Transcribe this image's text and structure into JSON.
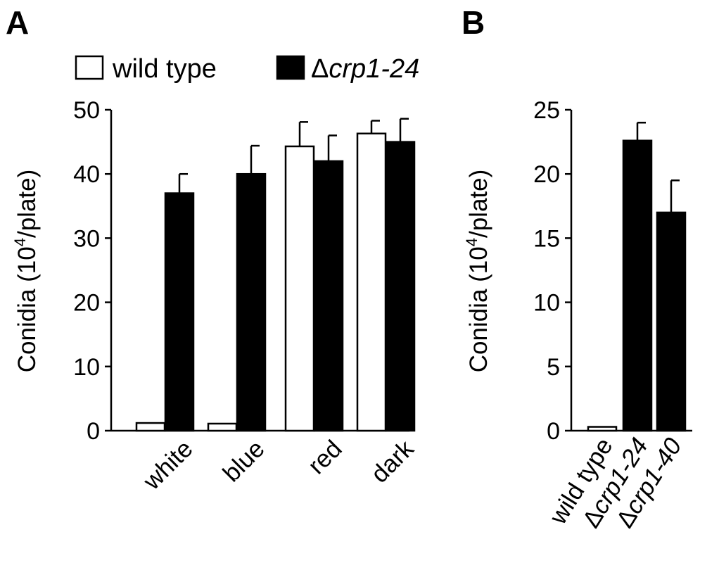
{
  "chart_data": [
    {
      "panel": "A",
      "type": "bar",
      "ylabel": "Conidia (10",
      "ylabel_sup": "4",
      "ylabel_tail": "/plate)",
      "ylim": [
        0,
        50
      ],
      "yticks": [
        "0",
        "10",
        "20",
        "30",
        "40",
        "50"
      ],
      "categories": [
        "white",
        "blue",
        "red",
        "dark"
      ],
      "series": [
        {
          "name": "wild type",
          "values": [
            1.2,
            1.1,
            44.3,
            46.3
          ],
          "errors": [
            0,
            0,
            3.8,
            2.0
          ],
          "fill": "#ffffff"
        },
        {
          "name": "crp1-24",
          "name_prefix": "Δ",
          "values": [
            37.0,
            40.0,
            42.0,
            45.0
          ],
          "errors": [
            3.0,
            4.4,
            4.0,
            3.6
          ],
          "fill": "#000000"
        }
      ],
      "legend": "top"
    },
    {
      "panel": "B",
      "type": "bar",
      "ylabel": "Conidia (10",
      "ylabel_sup": "4",
      "ylabel_tail": "/plate)",
      "ylim": [
        0,
        25
      ],
      "yticks": [
        "0",
        "5",
        "10",
        "15",
        "20",
        "25"
      ],
      "categories": [
        {
          "prefix": "",
          "label": "wild type",
          "italic": false
        },
        {
          "prefix": "Δ",
          "label": "crp1-24",
          "italic": true
        },
        {
          "prefix": "Δ",
          "label": "crp1-40",
          "italic": true
        }
      ],
      "values": [
        0.3,
        22.6,
        17.0
      ],
      "errors": [
        0,
        1.4,
        2.5
      ],
      "fills": [
        "#ffffff",
        "#000000",
        "#000000"
      ]
    }
  ]
}
